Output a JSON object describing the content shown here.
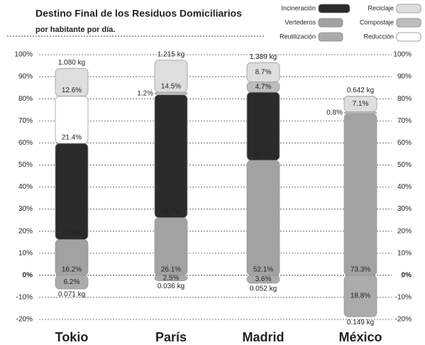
{
  "chart_data": {
    "type": "stacked_bar",
    "title": "Destino Final de los Residuos Domiciliarios",
    "subtitle": "por habitante por día.",
    "categories": [
      "Tokio",
      "París",
      "Madrid",
      "México"
    ],
    "series": [
      {
        "name": "Vertederos",
        "color": "#a2a2a2",
        "values": [
          16.2,
          26.1,
          52.1,
          73.3
        ],
        "value_labels": [
          "16.2%",
          "26.1%",
          "52.1%",
          "73.3%"
        ]
      },
      {
        "name": "Incineración",
        "color": "#2b2b2b",
        "values": [
          43.6,
          55.7,
          30.9,
          null
        ],
        "value_labels": [
          "43.6%",
          "55.7%",
          "30.9%",
          null
        ]
      },
      {
        "name": "Reducción",
        "color": "#ffffff",
        "values": [
          21.4,
          null,
          null,
          null
        ],
        "value_labels": [
          "21.4%",
          null,
          null,
          null
        ]
      },
      {
        "name": "Compostaje",
        "color": "#bdbdbd",
        "values": [
          null,
          1.2,
          4.7,
          0.8
        ],
        "value_labels": [
          null,
          "1.2%",
          "4.7%",
          "0.8%"
        ]
      },
      {
        "name": "Reciclaje",
        "color": "#dedede",
        "values": [
          12.6,
          14.5,
          8.7,
          7.1
        ],
        "value_labels": [
          "12.6%",
          "14.5%",
          "8.7%",
          "7.1%"
        ]
      },
      {
        "name": "Reutilización",
        "color": "#ababab",
        "values": [
          -6.2,
          -2.5,
          -3.6,
          -18.8
        ],
        "value_labels": [
          "6.2%",
          "2.5%",
          "3.6%",
          "18.8%"
        ]
      }
    ],
    "top_labels": [
      "1.080 kg",
      "1.215 kg",
      "1.389 kg",
      "0.642 kg"
    ],
    "bottom_labels": [
      "0.071 kg",
      "0.036 kg",
      "0.052 kg",
      "0.149 kg"
    ],
    "ylim": [
      -20,
      100
    ],
    "yticks": [
      {
        "value": -20,
        "label": "-20%"
      },
      {
        "value": -10,
        "label": "-10%"
      },
      {
        "value": 0,
        "label": "0%"
      },
      {
        "value": 10,
        "label": "10%"
      },
      {
        "value": 20,
        "label": "20%"
      },
      {
        "value": 30,
        "label": "30%"
      },
      {
        "value": 40,
        "label": "40%"
      },
      {
        "value": 50,
        "label": "50%"
      },
      {
        "value": 60,
        "label": "60%"
      },
      {
        "value": 70,
        "label": "70%"
      },
      {
        "value": 80,
        "label": "80%"
      },
      {
        "value": 90,
        "label": "90%"
      },
      {
        "value": 100,
        "label": "100%"
      }
    ],
    "grid": true
  }
}
